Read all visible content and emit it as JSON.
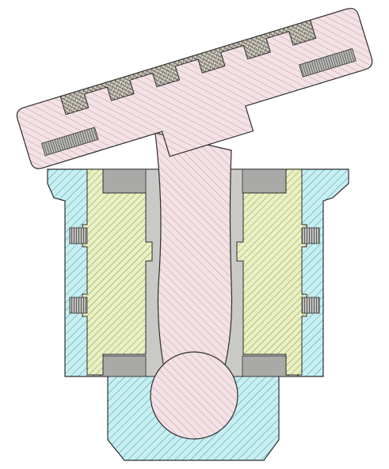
{
  "diagram": {
    "kind": "mechanical cross-section",
    "colors": {
      "background": "#ffffff",
      "outline": "#2e2e2e",
      "housing_fill": "#c9eef0",
      "housing_hatch": "#2a9fb5",
      "liner_fill": "#eaf0c3",
      "liner_hatch": "#6f8c2d",
      "stem_fill": "#f2e2e5",
      "stem_hatch": "#c98c99",
      "cavity_fill": "#c9c9c7",
      "cavity_dark": "#a9a9a7",
      "knurl_fill": "#d8d2c4",
      "knurl_line": "#4b4b4b"
    },
    "parts": [
      {
        "id": "housing",
        "hatch": "housing"
      },
      {
        "id": "bearing-liner",
        "hatch": "liner"
      },
      {
        "id": "stem-with-ball",
        "hatch": "stem"
      },
      {
        "id": "tilted-head",
        "hatch": "stem"
      },
      {
        "id": "knurled-teeth",
        "surface": "knurl"
      },
      {
        "id": "side-pins",
        "count": 4
      }
    ]
  }
}
